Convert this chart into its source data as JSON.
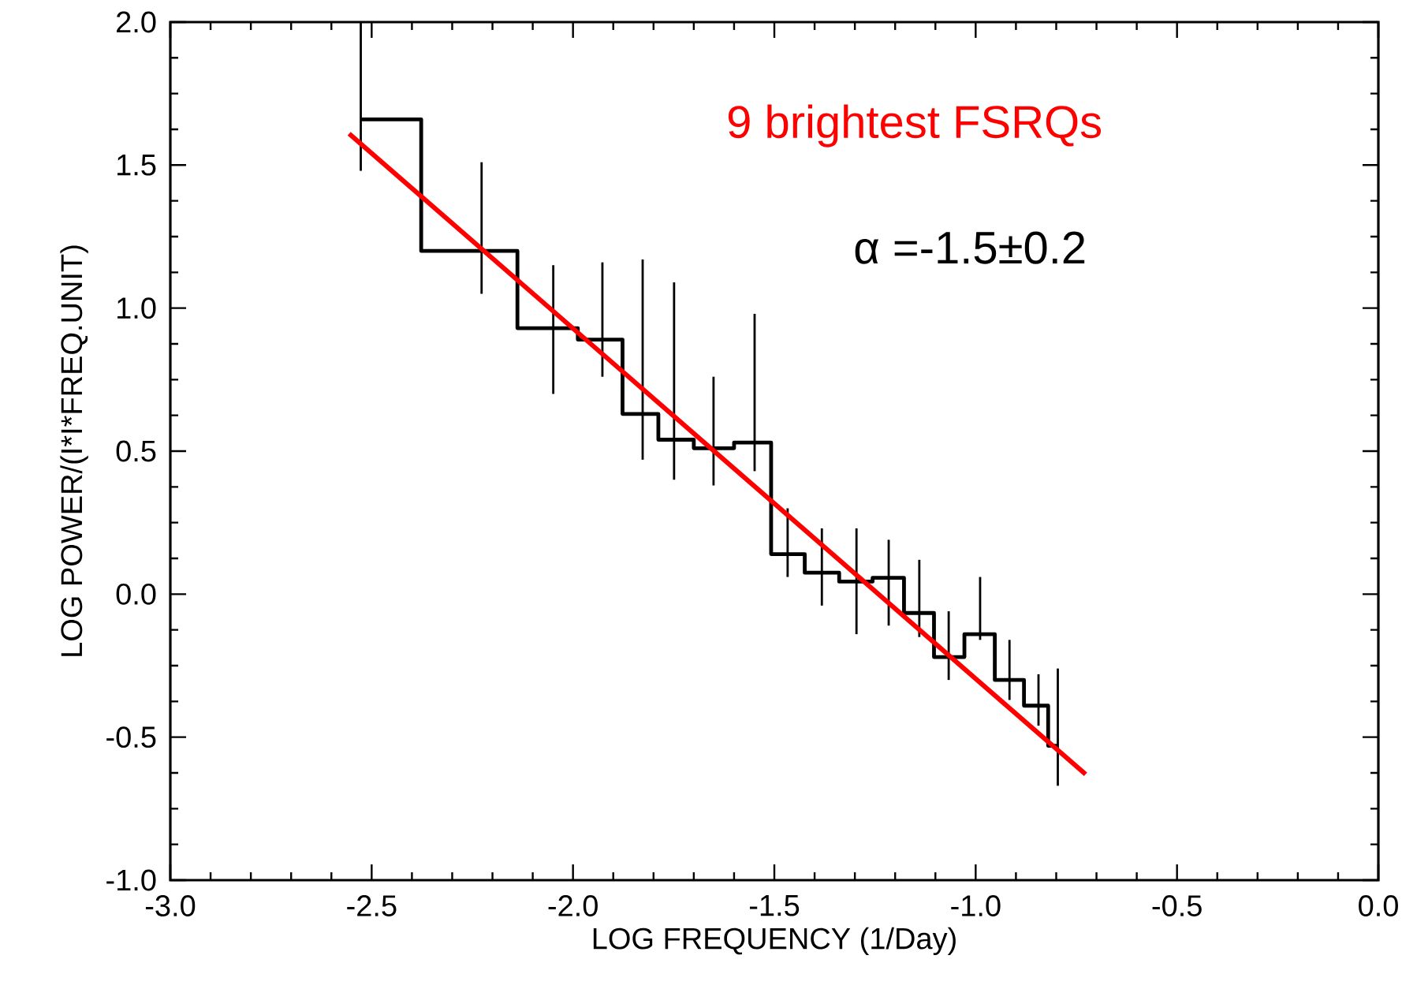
{
  "chart_data": {
    "type": "step",
    "xlabel": "LOG FREQUENCY (1/Day)",
    "ylabel": "LOG POWER/(I*I*FREQ.UNIT)",
    "annotations": [
      "9 brightest FSRQs",
      "α =-1.5±0.2"
    ],
    "xlim": [
      -3.0,
      0.0
    ],
    "ylim": [
      -1.0,
      2.0
    ],
    "xticks": [
      {
        "value": -3.0,
        "label": "-3.0"
      },
      {
        "value": -2.5,
        "label": "-2.5"
      },
      {
        "value": -2.0,
        "label": "-2.0"
      },
      {
        "value": -1.5,
        "label": "-1.5"
      },
      {
        "value": -1.0,
        "label": "-1.0"
      },
      {
        "value": -0.5,
        "label": "-0.5"
      },
      {
        "value": 0.0,
        "label": "0.0"
      }
    ],
    "yticks": [
      {
        "value": -1.0,
        "label": "-1.0"
      },
      {
        "value": -0.5,
        "label": "-0.5"
      },
      {
        "value": 0.0,
        "label": "0.0"
      },
      {
        "value": 0.5,
        "label": "0.5"
      },
      {
        "value": 1.0,
        "label": "1.0"
      },
      {
        "value": 1.5,
        "label": "1.5"
      },
      {
        "value": 2.0,
        "label": "2.0"
      }
    ],
    "series": [
      {
        "type": "step",
        "color": "#000000",
        "x": [
          -2.527,
          -2.227,
          -2.049,
          -1.927,
          -1.827,
          -1.749,
          -1.651,
          -1.549,
          -1.467,
          -1.382,
          -1.296,
          -1.216,
          -1.14,
          -1.067,
          -0.989,
          -0.916,
          -0.844,
          -0.796
        ],
        "values": [
          1.66,
          1.2,
          0.93,
          0.89,
          0.63,
          0.54,
          0.51,
          0.53,
          0.14,
          0.075,
          0.044,
          0.057,
          -0.066,
          -0.22,
          -0.14,
          -0.3,
          -0.39,
          -0.53
        ],
        "errors": [
          [
            1.48,
            2.0
          ],
          [
            1.05,
            1.51
          ],
          [
            0.7,
            1.15
          ],
          [
            0.76,
            1.16
          ],
          [
            0.47,
            1.17
          ],
          [
            0.4,
            1.09
          ],
          [
            0.38,
            0.76
          ],
          [
            0.43,
            0.98
          ],
          [
            0.06,
            0.3
          ],
          [
            -0.04,
            0.23
          ],
          [
            -0.14,
            0.23
          ],
          [
            -0.11,
            0.19
          ],
          [
            -0.15,
            0.12
          ],
          [
            -0.3,
            -0.06
          ],
          [
            -0.16,
            0.06
          ],
          [
            -0.37,
            -0.16
          ],
          [
            -0.46,
            -0.28
          ],
          [
            -0.67,
            -0.26
          ]
        ]
      },
      {
        "type": "line",
        "color": "#ff0000",
        "x": [
          -2.556,
          -0.727
        ],
        "values": [
          1.61,
          -0.63
        ]
      }
    ]
  }
}
